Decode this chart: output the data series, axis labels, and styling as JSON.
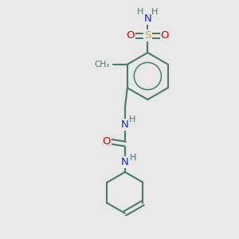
{
  "background_color": "#e8e8e8",
  "bond_color": "#4a7a6a",
  "atom_colors": {
    "S": "#ccaa00",
    "O": "#dd0000",
    "N": "#2222cc",
    "H": "#4a7a6a",
    "C": "#4a7a6a"
  },
  "figsize": [
    3.0,
    3.0
  ],
  "dpi": 100
}
